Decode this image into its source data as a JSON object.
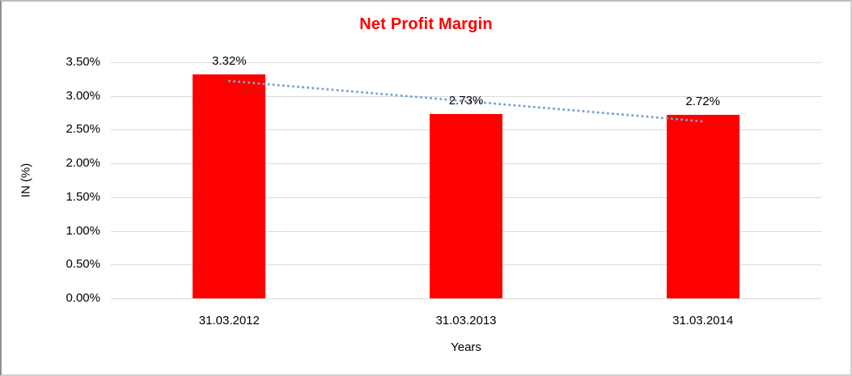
{
  "window": {
    "background": "#ffffff",
    "border_color": "#bdbdbd"
  },
  "chart_data": {
    "type": "bar",
    "title": "Net Profit Margin",
    "title_color": "#ff0000",
    "categories": [
      "31.03.2012",
      "31.03.2013",
      "31.03.2014"
    ],
    "values": [
      3.32,
      2.73,
      2.72
    ],
    "value_labels": [
      "3.32%",
      "2.73%",
      "2.72%"
    ],
    "bar_color": "#ff0000",
    "xlabel": "Years",
    "ylabel": "IN (%)",
    "ylim": [
      0,
      3.5
    ],
    "yticks": [
      0,
      0.5,
      1.0,
      1.5,
      2.0,
      2.5,
      3.0,
      3.5
    ],
    "ytick_labels": [
      "0.00%",
      "0.50%",
      "1.00%",
      "1.50%",
      "2.00%",
      "2.50%",
      "3.00%",
      "3.50%"
    ],
    "grid": true,
    "gridline_color": "#d9d9d9",
    "legend": "none",
    "text_color": "#000000",
    "trendline": {
      "type": "linear",
      "style": "dotted",
      "color": "#7ca1d6",
      "start_value": 3.223,
      "end_value": 2.623
    }
  }
}
